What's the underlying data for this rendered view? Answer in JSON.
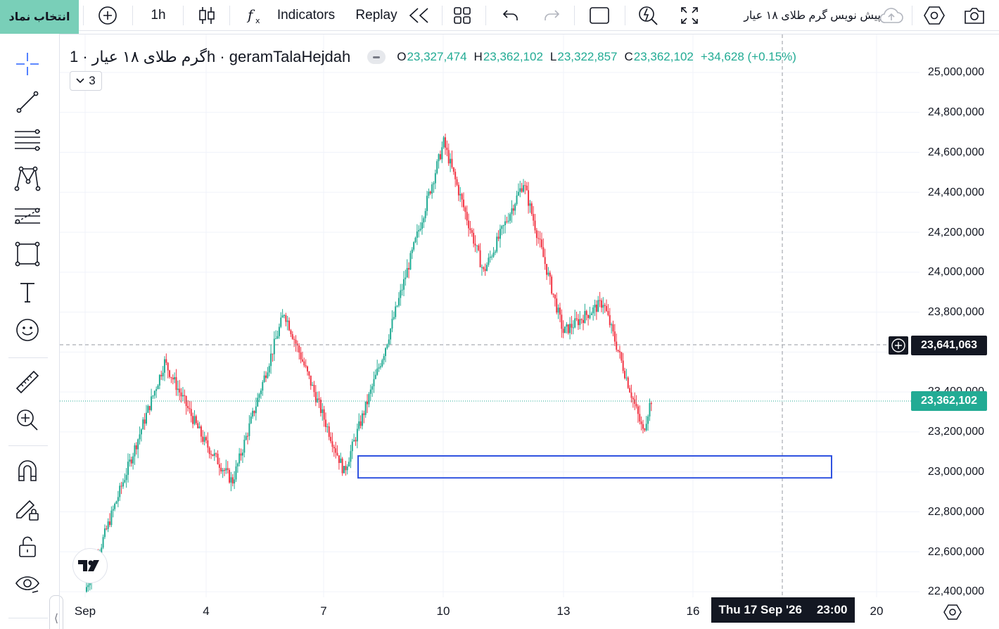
{
  "toolbar": {
    "symbol_search_label": "انتخاب نماد",
    "interval": "1h",
    "indicators_label": "Indicators",
    "replay_label": "Replay",
    "layout_title": "پیش نویس گرم طلای ۱۸ عیار",
    "icons": [
      "plus-circle-icon",
      "candles-icon",
      "fx-icon",
      "rewind-icon",
      "grid-icon",
      "undo-icon",
      "redo-icon",
      "square-icon",
      "alert-icon",
      "fullscreen-icon",
      "cloud-upload-icon",
      "settings-icon",
      "camera-icon"
    ]
  },
  "sidebar": {
    "tools": [
      "crosshair",
      "trend-line",
      "fib-retracement",
      "pattern",
      "projection",
      "rectangle",
      "text",
      "emoji",
      "ruler",
      "zoom-in",
      "magnet",
      "lock-draw",
      "lock",
      "eye"
    ]
  },
  "legend": {
    "title": "گرم طلای ۱۸ عیار · 1h · geramTalaHejdah",
    "open_label": "O",
    "open": "23,327,474",
    "high_label": "H",
    "high": "23,362,102",
    "low_label": "L",
    "low": "23,322,857",
    "close_label": "C",
    "close": "23,362,102",
    "change": "+34,628 (+0.15%)",
    "indicator_count": "3"
  },
  "price_axis": {
    "ticks": [
      "25,000,000",
      "24,800,000",
      "24,600,000",
      "24,400,000",
      "24,200,000",
      "24,000,000",
      "23,800,000",
      "23,400,000",
      "23,200,000",
      "23,000,000",
      "22,800,000",
      "22,600,000",
      "22,400,000"
    ],
    "crosshair_price": "23,641,063",
    "last_price": "23,362,102"
  },
  "time_axis": {
    "ticks": [
      "Sep",
      "4",
      "7",
      "10",
      "13",
      "16",
      "20"
    ],
    "crosshair_date": "Thu 17 Sep '26",
    "crosshair_time": "23:00"
  },
  "colors": {
    "up": "#22ab94",
    "down": "#f23645",
    "rectangle": "#2f52e0",
    "accent": "#79cfb8"
  },
  "chart_data": {
    "type": "candlestick",
    "ylim": [
      22400000,
      25000000
    ],
    "zone_rectangle": [
      22970000,
      23080000
    ],
    "key_points": [
      {
        "x": "1",
        "y": 22400000
      },
      {
        "x": "3",
        "y": 23550000
      },
      {
        "x": "4",
        "y": 23150000
      },
      {
        "x": "4.7",
        "y": 22950000
      },
      {
        "x": "6",
        "y": 23800000
      },
      {
        "x": "7.5",
        "y": 23000000
      },
      {
        "x": "8.5",
        "y": 23600000
      },
      {
        "x": "10",
        "y": 24650000
      },
      {
        "x": "11",
        "y": 24000000
      },
      {
        "x": "12",
        "y": 24450000
      },
      {
        "x": "13",
        "y": 23700000
      },
      {
        "x": "14",
        "y": 23850000
      },
      {
        "x": "15",
        "y": 23200000
      },
      {
        "x": "15.2",
        "y": 23362102
      }
    ]
  }
}
